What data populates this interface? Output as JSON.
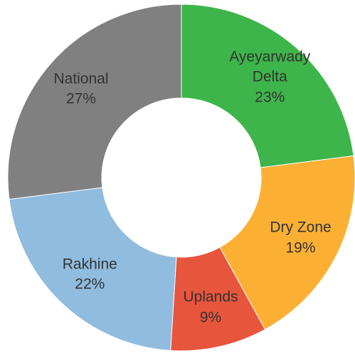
{
  "chart_data": {
    "type": "donut",
    "categories": [
      "Ayeyarwady Delta",
      "Dry Zone",
      "Uplands",
      "Rakhine",
      "National"
    ],
    "values": [
      23,
      19,
      9,
      22,
      27
    ],
    "value_labels": [
      "23%",
      "19%",
      "9%",
      "22%",
      "27%"
    ],
    "colors": [
      "#3db54a",
      "#fbb034",
      "#e8553d",
      "#8fbcdf",
      "#808080"
    ]
  }
}
